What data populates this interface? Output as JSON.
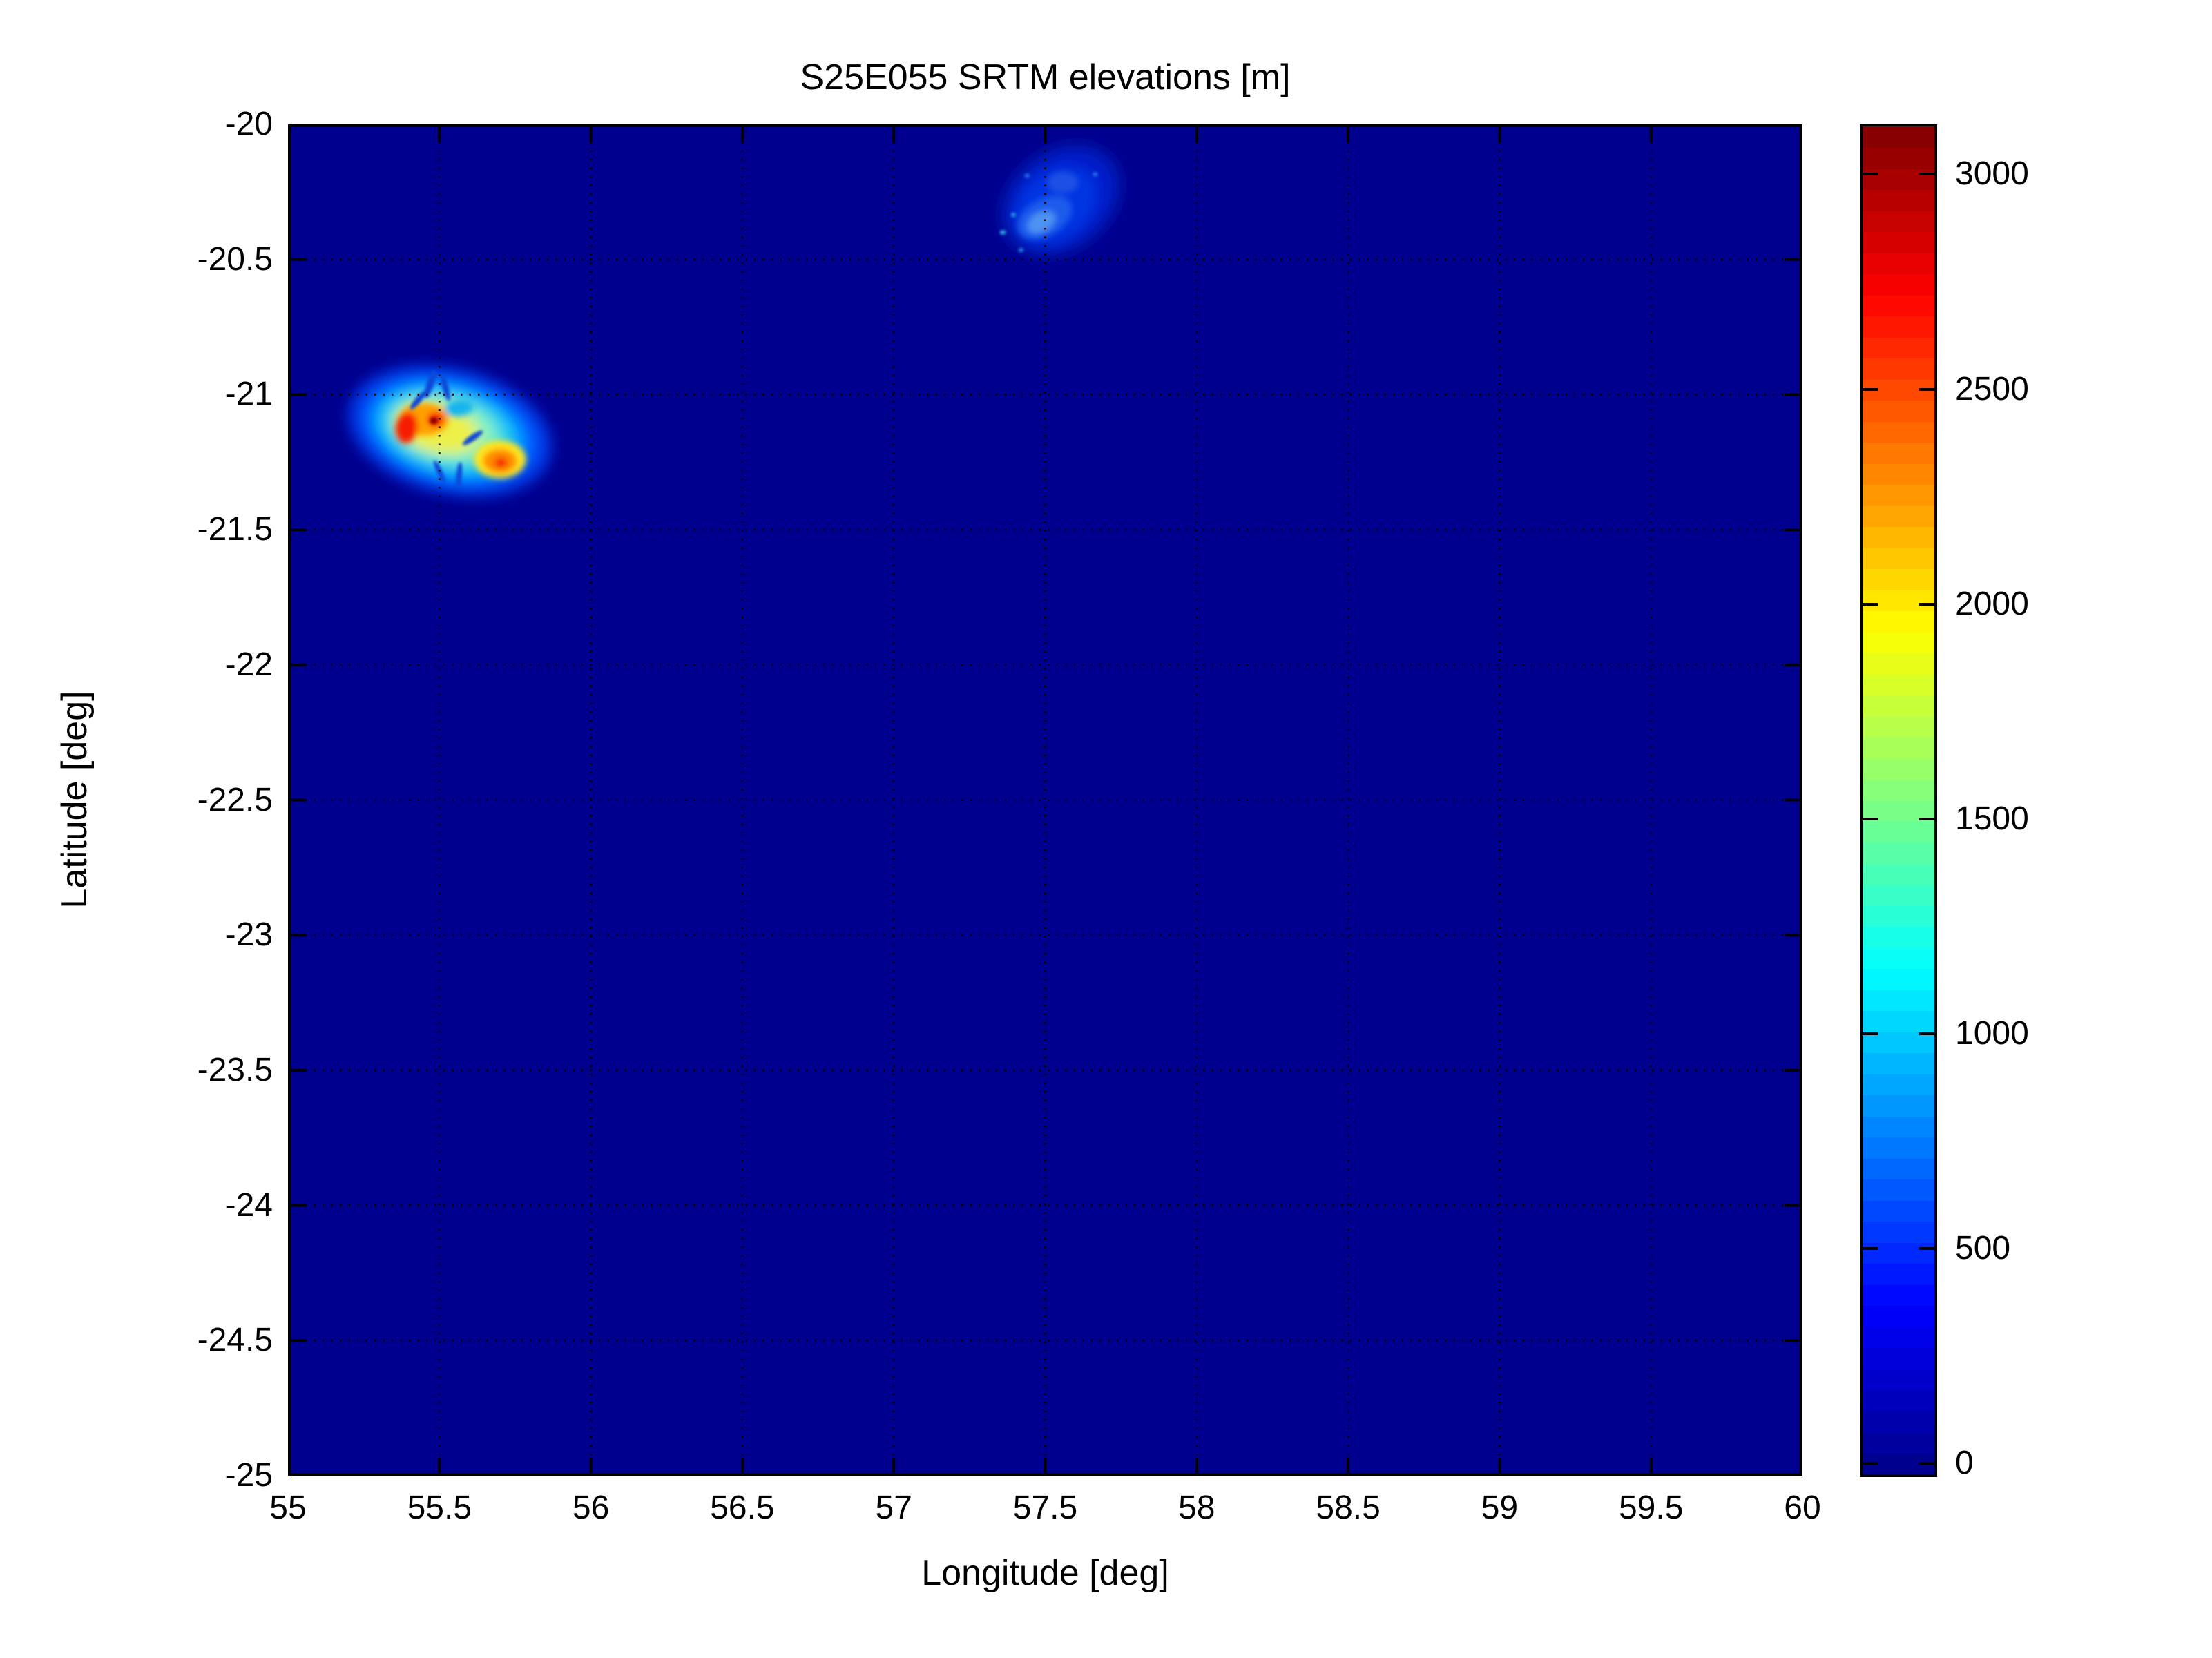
{
  "figure": {
    "background": "#FFFFFF",
    "title": "S25E055 SRTM elevations [m]"
  },
  "chart_data": {
    "type": "heatmap",
    "title": "S25E055 SRTM elevations [m]",
    "xlabel": "Longitude [deg]",
    "ylabel": "Latitude [deg]",
    "xlim": [
      55,
      60
    ],
    "ylim": [
      -25,
      -20
    ],
    "x_ticks": [
      55,
      55.5,
      56,
      56.5,
      57,
      57.5,
      58,
      58.5,
      59,
      59.5,
      60
    ],
    "x_tick_labels": [
      "55",
      "55.5",
      "56",
      "56.5",
      "57",
      "57.5",
      "58",
      "58.5",
      "59",
      "59.5",
      "60"
    ],
    "y_ticks": [
      -20,
      -20.5,
      -21,
      -21.5,
      -22,
      -22.5,
      -23,
      -23.5,
      -24,
      -24.5,
      -25
    ],
    "y_tick_labels": [
      "-20",
      "-20.5",
      "-21",
      "-21.5",
      "-22",
      "-22.5",
      "-23",
      "-23.5",
      "-24",
      "-24.5",
      "-25"
    ],
    "grid": {
      "style": "dotted",
      "color": "#000000"
    },
    "ocean_value_m": 0,
    "ocean_color": "#00008F",
    "colorbar": {
      "colormap": "jet",
      "levels": 64,
      "vmin": -25,
      "vmax": 3110,
      "tick_values": [
        0,
        500,
        1000,
        1500,
        2000,
        2500,
        3000
      ],
      "tick_labels": [
        "0",
        "500",
        "1000",
        "1500",
        "2000",
        "2500",
        "3000"
      ],
      "jet_stops": [
        [
          0,
          "#000088"
        ],
        [
          0.125,
          "#0000FF"
        ],
        [
          0.375,
          "#00FFFF"
        ],
        [
          0.625,
          "#FFFF00"
        ],
        [
          0.875,
          "#FF0000"
        ],
        [
          1,
          "#800000"
        ]
      ]
    },
    "islands": [
      {
        "id": "island-west-high",
        "approx_lon_range": [
          55.21,
          55.87
        ],
        "approx_lat_range": [
          -21.41,
          -20.86
        ],
        "peak_note": "two volcanic cores reaching red/dark-red colors (~2500-3000 m)",
        "layers": [
          [
            "soft",
            55.535,
            -21.135,
            0.345,
            0.235,
            14,
            "#0030DC"
          ],
          [
            "soft",
            55.535,
            -21.135,
            0.3,
            0.2,
            14,
            "#0057FF"
          ],
          [
            "soft",
            55.53,
            -21.135,
            0.256,
            0.17,
            14,
            "#00A5FF"
          ],
          [
            "soft",
            55.525,
            -21.132,
            0.216,
            0.142,
            14,
            "#2FD5E8"
          ],
          [
            "soft",
            55.518,
            -21.128,
            0.176,
            0.113,
            14,
            "#8AF2BE"
          ],
          [
            "soft",
            55.492,
            -21.125,
            0.138,
            0.088,
            14,
            "#EDF04A"
          ],
          [
            "detail",
            55.448,
            -21.092,
            0.082,
            0.06,
            0,
            "#FFA000"
          ],
          [
            "detail",
            55.392,
            -21.122,
            0.036,
            0.058,
            8,
            "#F51E00"
          ],
          [
            "detail",
            55.487,
            -21.092,
            0.028,
            0.028,
            0,
            "#F53000"
          ],
          [
            "detail",
            55.565,
            -21.05,
            0.048,
            0.03,
            -8,
            "#19B4F0"
          ],
          [
            "detail",
            55.7,
            -21.24,
            0.086,
            0.07,
            0,
            "#FFE61E"
          ],
          [
            "detail",
            55.7,
            -21.246,
            0.056,
            0.046,
            0,
            "#FF8C00"
          ],
          [
            "detail",
            55.703,
            -21.252,
            0.021,
            0.02,
            0,
            "#F52000"
          ],
          [
            "fine",
            55.481,
            -21.097,
            0.013,
            0.013,
            0,
            "#8F0000"
          ],
          [
            "fine",
            55.47,
            -20.96,
            0.012,
            0.055,
            18,
            "#0846D8"
          ],
          [
            "fine",
            55.52,
            -20.975,
            0.01,
            0.05,
            -15,
            "#0846D8"
          ],
          [
            "fine",
            55.43,
            -21.02,
            0.01,
            0.045,
            40,
            "#0846D8"
          ],
          [
            "fine",
            55.565,
            -21.3,
            0.009,
            0.05,
            5,
            "#0846D8"
          ],
          [
            "fine",
            55.61,
            -21.16,
            0.01,
            0.045,
            55,
            "#0846D8"
          ],
          [
            "fine",
            55.5,
            -21.285,
            0.009,
            0.045,
            -25,
            "#0846D8"
          ]
        ]
      },
      {
        "id": "island-northeast-low",
        "approx_lon_range": [
          57.33,
          57.79
        ],
        "approx_lat_range": [
          -20.51,
          -20.06
        ],
        "peak_note": "low island, faint blue (~300-800 m)",
        "layers": [
          [
            "soft",
            57.552,
            -20.28,
            0.222,
            0.19,
            -38,
            "#0013AA"
          ],
          [
            "soft",
            57.552,
            -20.282,
            0.188,
            0.158,
            -38,
            "#001FCC"
          ],
          [
            "soft",
            57.535,
            -20.298,
            0.148,
            0.122,
            -38,
            "#0336E2"
          ],
          [
            "detail",
            57.498,
            -20.345,
            0.098,
            0.068,
            -30,
            "#1C5CEC"
          ],
          [
            "detail",
            57.487,
            -20.362,
            0.05,
            0.036,
            -30,
            "#4E93F2"
          ],
          [
            "detail",
            57.558,
            -20.215,
            0.052,
            0.04,
            0,
            "#1E4FE4"
          ],
          [
            "fine",
            57.36,
            -20.4,
            0.01,
            0.008,
            0,
            "#35B9F0"
          ],
          [
            "fine",
            57.395,
            -20.335,
            0.008,
            0.007,
            0,
            "#35B9F0"
          ],
          [
            "fine",
            57.42,
            -20.465,
            0.008,
            0.007,
            0,
            "#2FA0F0"
          ],
          [
            "fine",
            57.665,
            -20.185,
            0.008,
            0.007,
            0,
            "#2F8CF0"
          ],
          [
            "fine",
            57.44,
            -20.19,
            0.009,
            0.007,
            0,
            "#2F7CE8"
          ]
        ]
      }
    ]
  }
}
